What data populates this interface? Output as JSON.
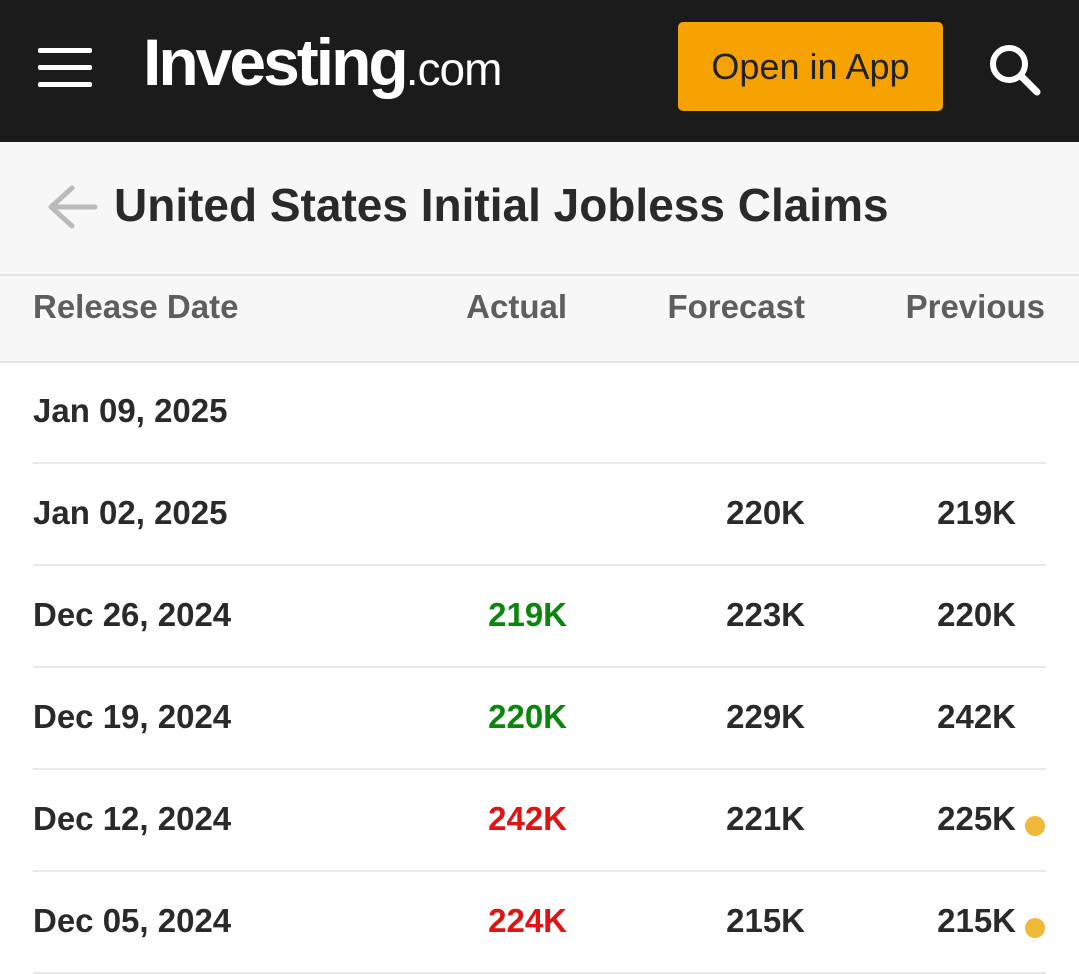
{
  "header": {
    "logo": "Investing",
    "logo_suffix": ".com",
    "button": "Open in App"
  },
  "page": {
    "title": "United States Initial Jobless Claims"
  },
  "table": {
    "columns": [
      "Release Date",
      "Actual",
      "Forecast",
      "Previous"
    ],
    "rows": [
      {
        "date": "Jan 09, 2025",
        "actual": null,
        "forecast": null,
        "previous": null
      },
      {
        "date": "Jan 02, 2025",
        "actual": null,
        "forecast": "220K",
        "previous": "219K"
      },
      {
        "date": "Dec 26, 2024",
        "actual": "219K",
        "actual_color": "#0a870a",
        "forecast": "223K",
        "previous": "220K"
      },
      {
        "date": "Dec 19, 2024",
        "actual": "220K",
        "actual_color": "#0a870a",
        "forecast": "229K",
        "previous": "242K"
      },
      {
        "date": "Dec 12, 2024",
        "actual": "242K",
        "actual_color": "#e01414",
        "forecast": "221K",
        "previous": "225K",
        "previous_revised": true
      },
      {
        "date": "Dec 05, 2024",
        "actual": "224K",
        "actual_color": "#e01414",
        "forecast": "215K",
        "previous": "215K",
        "previous_revised": true
      }
    ]
  }
}
